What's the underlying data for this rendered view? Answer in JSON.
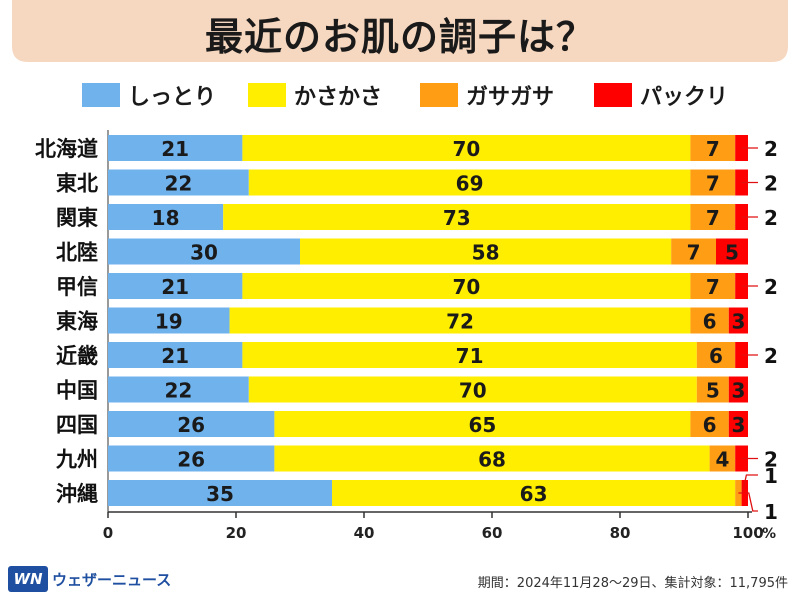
{
  "title": "最近のお肌の調子は？",
  "legend": [
    {
      "label": "しっとり",
      "color": "#6fb2ec"
    },
    {
      "label": "かさかさ",
      "color": "#ffee00"
    },
    {
      "label": "ガサガサ",
      "color": "#ff9d14"
    },
    {
      "label": "パックリ",
      "color": "#ff0000"
    }
  ],
  "chart_data": {
    "type": "bar",
    "orientation": "horizontal",
    "stacked": true,
    "categories": [
      "北海道",
      "東北",
      "関東",
      "北陸",
      "甲信",
      "東海",
      "近畿",
      "中国",
      "四国",
      "九州",
      "沖縄"
    ],
    "series": [
      {
        "name": "しっとり",
        "color": "#6fb2ec",
        "values": [
          21,
          22,
          18,
          30,
          21,
          19,
          21,
          22,
          26,
          26,
          35
        ]
      },
      {
        "name": "かさかさ",
        "color": "#ffee00",
        "values": [
          70,
          69,
          73,
          58,
          70,
          72,
          71,
          70,
          65,
          68,
          63
        ]
      },
      {
        "name": "ガサガサ",
        "color": "#ff9d14",
        "values": [
          7,
          7,
          7,
          7,
          7,
          6,
          6,
          5,
          6,
          4,
          1
        ]
      },
      {
        "name": "パックリ",
        "color": "#ff0000",
        "values": [
          2,
          2,
          2,
          5,
          2,
          3,
          2,
          3,
          3,
          2,
          1
        ]
      }
    ],
    "outside_labels": [
      {
        "category": "北海道",
        "series": "パックリ",
        "text": "2"
      },
      {
        "category": "東北",
        "series": "パックリ",
        "text": "2"
      },
      {
        "category": "関東",
        "series": "パックリ",
        "text": "2"
      },
      {
        "category": "甲信",
        "series": "パックリ",
        "text": "2"
      },
      {
        "category": "近畿",
        "series": "パックリ",
        "text": "2"
      },
      {
        "category": "九州",
        "series": "パックリ",
        "text": "2"
      },
      {
        "category": "沖縄",
        "series": "ガサガサ",
        "text": "1"
      },
      {
        "category": "沖縄",
        "series": "パックリ",
        "text": "1"
      }
    ],
    "xlim": [
      0,
      100
    ],
    "xticks": [
      0,
      20,
      40,
      60,
      80,
      100
    ],
    "x_unit": "%",
    "grid": false,
    "legend_position": "top"
  },
  "footer": {
    "logo_mark": "WN",
    "logo_text": "ウェザーニュース",
    "note": "期間：2024年11月28〜29日、集計対象：11,795件"
  }
}
